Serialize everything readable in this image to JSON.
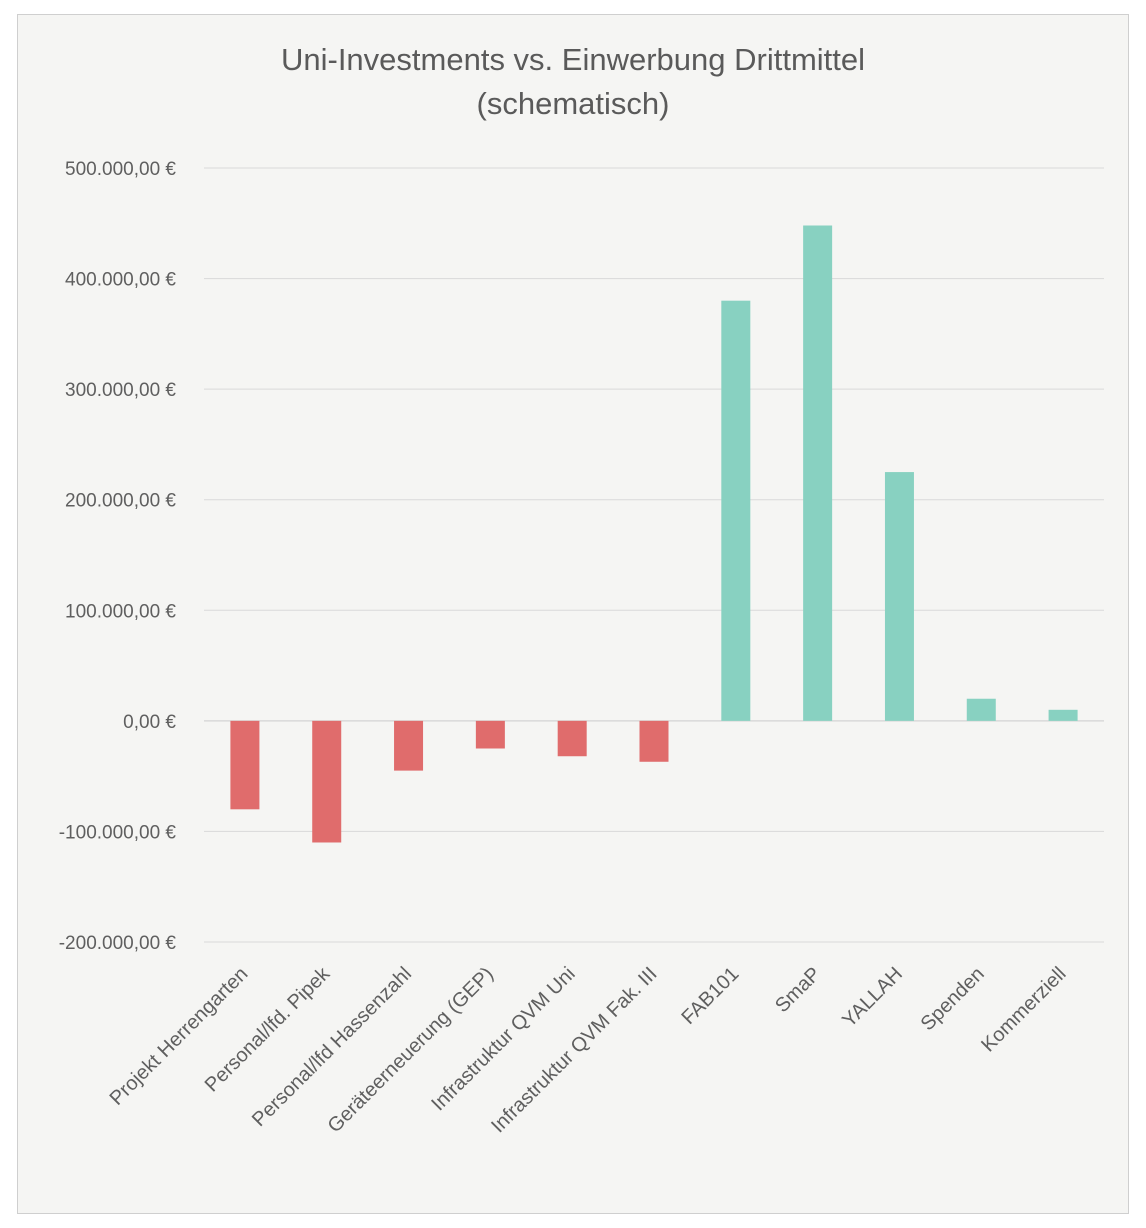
{
  "chart_data": {
    "type": "bar",
    "title": "Uni-Investments vs. Einwerbung Drittmittel (schematisch)",
    "title_line1": "Uni-Investments vs. Einwerbung Drittmittel",
    "title_line2": "(schematisch)",
    "categories": [
      "Projekt Herrengarten",
      "Personal/lfd. Pipek",
      "Personal/lfd Hassenzahl",
      "Geräteerneuerung (GEP)",
      "Infrastruktur QVM Uni",
      "Infrastruktur QVM Fak. III",
      "FAB101",
      "SmaP",
      "YALLAH",
      "Spenden",
      "Kommerziell"
    ],
    "values": [
      -80000,
      -110000,
      -45000,
      -25000,
      -32000,
      -37000,
      380000,
      448000,
      225000,
      20000,
      10000
    ],
    "ylim": [
      -200000,
      500000
    ],
    "yticks": [
      500000,
      400000,
      300000,
      200000,
      100000,
      0,
      -100000,
      -200000
    ],
    "ytick_labels": [
      "500.000,00 €",
      "400.000,00 €",
      "300.000,00 €",
      "200.000,00 €",
      "100.000,00 €",
      "0,00 €",
      "-100.000,00 €",
      "-200.000,00 €"
    ],
    "xlabel": "",
    "ylabel": "",
    "grid": true,
    "legend": "none",
    "colors": {
      "negative": "#e06c6c",
      "positive": "#88d1c1",
      "grid": "#d9d9d9",
      "text": "#5f5f5f"
    }
  }
}
